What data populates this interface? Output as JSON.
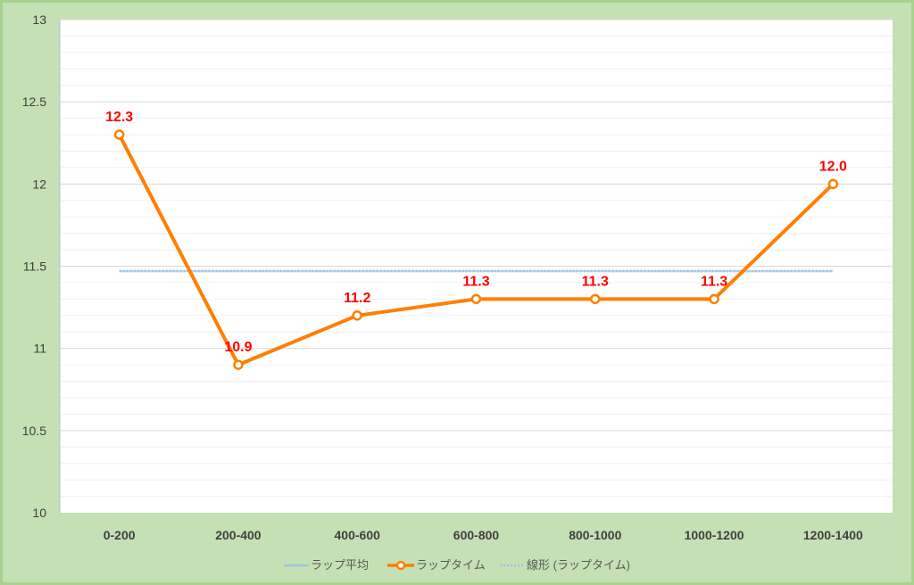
{
  "chart_data": {
    "type": "line",
    "title": "",
    "xlabel": "",
    "ylabel": "",
    "ylim": [
      10,
      13
    ],
    "yticks": [
      "10",
      "10.5",
      "11",
      "11.5",
      "12",
      "12.5",
      "13"
    ],
    "categories": [
      "0-200",
      "200-400",
      "400-600",
      "600-800",
      "800-1000",
      "1000-1200",
      "1200-1400"
    ],
    "series": [
      {
        "name": "ラップタイム",
        "values": [
          12.3,
          10.9,
          11.2,
          11.3,
          11.3,
          11.3,
          12.0
        ],
        "data_labels": [
          "12.3",
          "10.9",
          "11.2",
          "11.3",
          "11.3",
          "11.3",
          "12.0"
        ],
        "color": "#ff7f00",
        "marker": "circle-hollow"
      },
      {
        "name": "ラップ平均",
        "values": [
          11.47,
          11.47,
          11.47,
          11.47,
          11.47,
          11.47,
          11.47
        ],
        "color": "#9dc3e6",
        "style": "solid"
      },
      {
        "name": "線形 (ラップタイム)",
        "values": [
          11.47,
          11.47,
          11.47,
          11.47,
          11.47,
          11.47,
          11.47
        ],
        "color": "#9dc3e6",
        "style": "dotted"
      }
    ],
    "legend": {
      "position": "bottom",
      "entries": [
        "ラップ平均",
        "ラップタイム",
        "線形 (ラップタイム)"
      ]
    },
    "grid": true,
    "plot_background": "#ffffff",
    "chart_background": "#c5e0b4"
  }
}
